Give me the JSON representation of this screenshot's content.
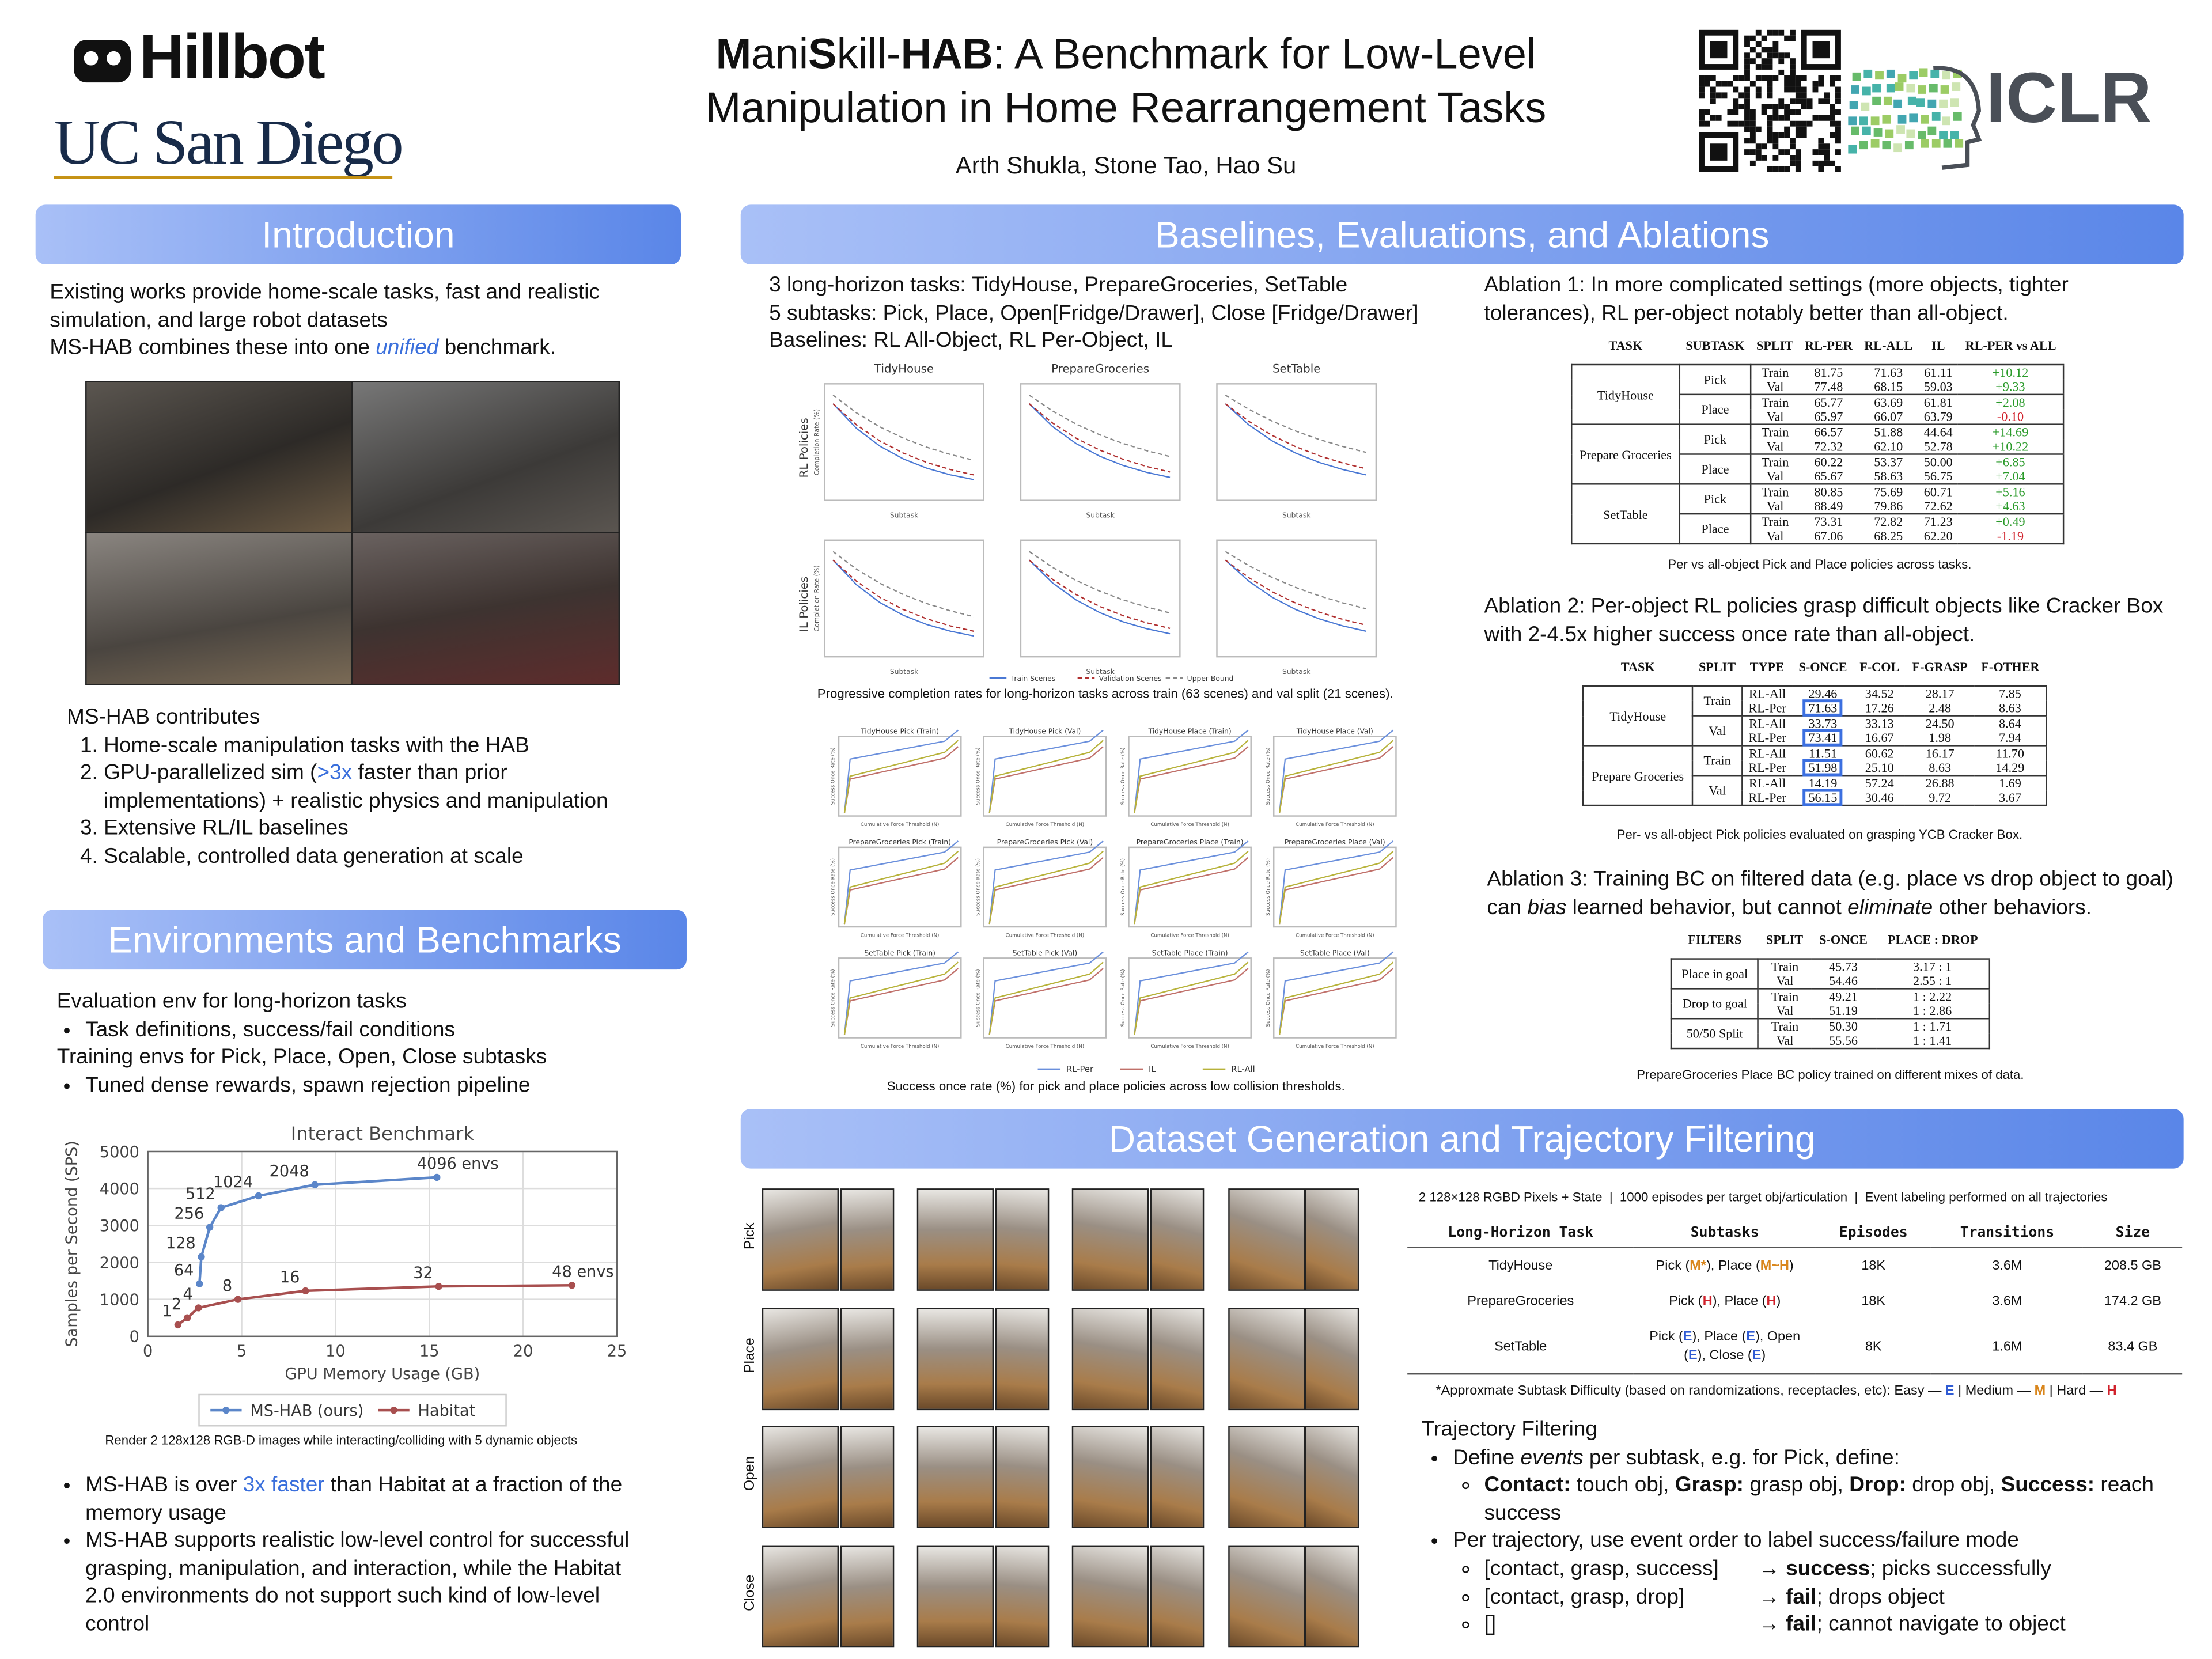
{
  "header": {
    "logos": [
      "Hillbot",
      "UC San Diego",
      "ICLR"
    ],
    "title": [
      "M",
      "ani",
      "S",
      "kill-",
      "HAB",
      ": A Benchmark for Low-Level",
      "Manipulation in Home Rearrangement Tasks"
    ],
    "authors": "Arth Shukla, Stone Tao, Hao Su"
  },
  "introduction": {
    "heading": "Introduction",
    "text": [
      "Existing works provide home-scale tasks, fast and realistic simulation, and large robot datasets",
      "MS-HAB combines these into one ",
      "unified",
      " benchmark."
    ],
    "contributes": "MS-HAB contributes",
    "items": [
      "Home-scale manipulation tasks with the HAB",
      [
        "GPU-parallelized sim (",
        ">3x",
        " faster than prior implementations) + realistic physics and manipulation"
      ],
      "Extensive RL/IL baselines",
      "Scalable, controlled data generation at scale"
    ]
  },
  "environments": {
    "heading": "Environments and Benchmarks",
    "lines": [
      "Evaluation env for long-horizon tasks",
      "Task definitions, success/fail conditions",
      "Training envs for Pick, Place, Open, Close subtasks",
      "Tuned dense rewards, spawn rejection pipeline"
    ],
    "caption": "Render 2 128x128 RGB-D images while interacting/colliding with 5 dynamic objects",
    "bullets": [
      [
        "MS-HAB is over ",
        "3x faster",
        " than Habitat at a fraction of the memory usage"
      ],
      "MS-HAB supports realistic low-level control for successful grasping, manipulation, and interaction, while the Habitat 2.0 environments do not support such kind of low-level control"
    ]
  },
  "chart_data": {
    "type": "line",
    "title": "Interact Benchmark",
    "x_label": "GPU Memory Usage (GB)",
    "y_label": "Samples per Second (SPS)",
    "xlim": [
      0,
      25
    ],
    "xticks": [
      0,
      5,
      10,
      15,
      20,
      25
    ],
    "ylim": [
      0,
      5000
    ],
    "yticks": [
      0,
      1000,
      2000,
      3000,
      4000,
      5000
    ],
    "grid": true,
    "legend": "bottom",
    "series": [
      {
        "name": "MS-HAB (ours)",
        "color": "#5b86c9",
        "x": [
          2.75,
          2.85,
          3.3,
          3.9,
          5.9,
          8.9,
          15.4
        ],
        "values": [
          1420,
          2150,
          2950,
          3480,
          3800,
          4100,
          4300
        ],
        "point_labels": [
          "64",
          "128",
          "256",
          "512",
          "1024",
          "2048",
          "4096 envs"
        ]
      },
      {
        "name": "Habitat",
        "color": "#a84f4f",
        "x": [
          1.6,
          2.1,
          2.7,
          4.8,
          8.4,
          15.5,
          22.6
        ],
        "values": [
          310,
          500,
          770,
          1000,
          1230,
          1350,
          1380
        ],
        "point_labels": [
          "1",
          "2",
          "4",
          "8",
          "16",
          "32",
          "48 envs"
        ]
      }
    ]
  },
  "baselines": {
    "heading": "Baselines, Evaluations, and Ablations",
    "lines": [
      "3 long-horizon tasks: TidyHouse, PrepareGroceries, SetTable",
      "5 subtasks: Pick, Place, Open[Fridge/Drawer], Close [Fridge/Drawer]",
      "Baselines: RL All-Object, RL Per-Object, IL"
    ],
    "completion_plots": {
      "columns": [
        "TidyHouse",
        "PrepareGroceries",
        "SetTable"
      ],
      "rows": [
        "RL Policies",
        "IL Policies"
      ],
      "ylabel": "Completion Rate (%)",
      "xlabel": "Subtask",
      "legend": [
        "Train Scenes",
        "Validation Scenes",
        "Upper Bound"
      ]
    },
    "completion_caption": "Progressive completion rates for long-horizon tasks across train (63 scenes) and val split (21 scenes).",
    "success_plots": {
      "titles": [
        "TidyHouse Pick (Train)",
        "TidyHouse Pick (Val)",
        "TidyHouse Place (Train)",
        "TidyHouse Place (Val)",
        "PrepareGroceries Pick (Train)",
        "PrepareGroceries Pick (Val)",
        "PrepareGroceries Place (Train)",
        "PrepareGroceries Place (Val)",
        "SetTable Pick (Train)",
        "SetTable Pick (Val)",
        "SetTable Place (Train)",
        "SetTable Place (Val)"
      ],
      "xlabel": "Cumulative Force Threshold (N)",
      "ylabel": "Success Once Rate (%)",
      "legend": [
        "RL-Per",
        "IL",
        "RL-All"
      ]
    },
    "success_caption": "Success once rate (%) for pick and place policies across low collision thresholds.",
    "ablation1": {
      "text": "Ablation 1: In more complicated settings (more objects, tighter tolerances), RL per-object notably better than all-object.",
      "header": [
        "TASK",
        "SUBTASK",
        "SPLIT",
        "RL-PER",
        "RL-ALL",
        "IL",
        "RL-PER vs ALL"
      ],
      "groups": [
        {
          "label": "TidyHouse",
          "children": [
            {
              "label": "Pick",
              "rows": [
                [
                  "Train",
                  "81.75",
                  "71.63",
                  "61.11",
                  "+10.12"
                ],
                [
                  "Val",
                  "77.48",
                  "68.15",
                  "59.03",
                  "+9.33"
                ]
              ]
            },
            {
              "label": "Place",
              "rows": [
                [
                  "Train",
                  "65.77",
                  "63.69",
                  "61.81",
                  "+2.08"
                ],
                [
                  "Val",
                  "65.97",
                  "66.07",
                  "63.79",
                  "-0.10"
                ]
              ]
            }
          ]
        },
        {
          "label": "Prepare Groceries",
          "children": [
            {
              "label": "Pick",
              "rows": [
                [
                  "Train",
                  "66.57",
                  "51.88",
                  "44.64",
                  "+14.69"
                ],
                [
                  "Val",
                  "72.32",
                  "62.10",
                  "52.78",
                  "+10.22"
                ]
              ]
            },
            {
              "label": "Place",
              "rows": [
                [
                  "Train",
                  "60.22",
                  "53.37",
                  "50.00",
                  "+6.85"
                ],
                [
                  "Val",
                  "65.67",
                  "58.63",
                  "56.75",
                  "+7.04"
                ]
              ]
            }
          ]
        },
        {
          "label": "SetTable",
          "children": [
            {
              "label": "Pick",
              "rows": [
                [
                  "Train",
                  "80.85",
                  "75.69",
                  "60.71",
                  "+5.16"
                ],
                [
                  "Val",
                  "88.49",
                  "79.86",
                  "72.62",
                  "+4.63"
                ]
              ]
            },
            {
              "label": "Place",
              "rows": [
                [
                  "Train",
                  "73.31",
                  "72.82",
                  "71.23",
                  "+0.49"
                ],
                [
                  "Val",
                  "67.06",
                  "68.25",
                  "62.20",
                  "-1.19"
                ]
              ]
            }
          ]
        }
      ],
      "caption": "Per vs all-object Pick and Place policies across tasks."
    },
    "ablation2": {
      "text": "Ablation 2: Per-object RL policies grasp difficult objects like Cracker Box with 2-4.5x higher success once rate than all-object.",
      "header": [
        "TASK",
        "SPLIT",
        "TYPE",
        "S-ONCE",
        "F-COL",
        "F-GRASP",
        "F-OTHER"
      ],
      "groups": [
        {
          "label": "TidyHouse",
          "children": [
            {
              "label": "Train",
              "rows": [
                [
                  "RL-All",
                  "29.46",
                  "34.52",
                  "28.17",
                  "7.85"
                ],
                [
                  "RL-Per",
                  "71.63",
                  "17.26",
                  "2.48",
                  "8.63"
                ]
              ]
            },
            {
              "label": "Val",
              "rows": [
                [
                  "RL-All",
                  "33.73",
                  "33.13",
                  "24.50",
                  "8.64"
                ],
                [
                  "RL-Per",
                  "73.41",
                  "16.67",
                  "1.98",
                  "7.94"
                ]
              ]
            }
          ]
        },
        {
          "label": "Prepare Groceries",
          "children": [
            {
              "label": "Train",
              "rows": [
                [
                  "RL-All",
                  "11.51",
                  "60.62",
                  "16.17",
                  "11.70"
                ],
                [
                  "RL-Per",
                  "51.98",
                  "25.10",
                  "8.63",
                  "14.29"
                ]
              ]
            },
            {
              "label": "Val",
              "rows": [
                [
                  "RL-All",
                  "14.19",
                  "57.24",
                  "26.88",
                  "1.69"
                ],
                [
                  "RL-Per",
                  "56.15",
                  "30.46",
                  "9.72",
                  "3.67"
                ]
              ]
            }
          ]
        }
      ],
      "caption": "Per- vs all-object Pick policies evaluated on grasping YCB Cracker Box."
    },
    "ablation3": {
      "text": [
        "Ablation 3: Training BC on filtered data (e.g. place vs drop object to goal) can ",
        "bias",
        " learned behavior, but cannot ",
        "eliminate",
        " other behaviors."
      ],
      "header": [
        "FILTERS",
        "SPLIT",
        "S-ONCE",
        "PLACE : DROP"
      ],
      "groups": [
        {
          "label": "Place in goal",
          "rows": [
            [
              "Train",
              "45.73",
              "3.17 : 1"
            ],
            [
              "Val",
              "54.46",
              "2.55 : 1"
            ]
          ]
        },
        {
          "label": "Drop to goal",
          "rows": [
            [
              "Train",
              "49.21",
              "1 : 2.22"
            ],
            [
              "Val",
              "51.19",
              "1 : 2.86"
            ]
          ]
        },
        {
          "label": "50/50 Split",
          "rows": [
            [
              "Train",
              "50.30",
              "1 : 1.71"
            ],
            [
              "Val",
              "55.56",
              "1 : 1.41"
            ]
          ]
        }
      ],
      "caption": "PrepareGroceries Place BC policy trained on different mixes of data."
    }
  },
  "dataset": {
    "heading": "Dataset Generation and Trajectory Filtering",
    "row_labels": [
      "Pick",
      "Place",
      "Open",
      "Close"
    ],
    "info": "2 128×128 RGBD Pixels + State  |  1000 episodes per target obj/articulation  |  Event labeling performed on all trajectories",
    "table": {
      "header": [
        "Long-Horizon Task",
        "Subtasks",
        "Episodes",
        "Transitions",
        "Size"
      ],
      "rows": [
        [
          "TidyHouse",
          [
            "Pick (",
            "M*",
            "), Place (",
            "M~H",
            ")"
          ],
          "18K",
          "3.6M",
          "208.5 GB"
        ],
        [
          "PrepareGroceries",
          [
            "Pick (",
            "H",
            "), Place (",
            "H",
            ")"
          ],
          "18K",
          "3.6M",
          "174.2 GB"
        ],
        [
          "SetTable",
          [
            "Pick (",
            "E",
            "), Place (",
            "E",
            "), Open (",
            "E",
            "), Close (",
            "E",
            ")"
          ],
          "8K",
          "1.6M",
          "83.4 GB"
        ]
      ]
    },
    "difficulty_colors": {
      "E": "#2f5bd3",
      "M": "#d9861c",
      "H": "#d0202a"
    },
    "footnote": [
      "*Approxmate Subtask Difficulty (based on randomizations, receptacles, etc): Easy — ",
      "E",
      " | Medium — ",
      "M",
      " | Hard — ",
      "H"
    ],
    "filtering": {
      "heading": "Trajectory Filtering",
      "l1": [
        "Define ",
        "events",
        " per subtask, e.g. for Pick, define:"
      ],
      "l2": [
        "Contact:",
        " touch obj, ",
        "Grasp:",
        " grasp obj, ",
        "Drop:",
        " drop obj, ",
        "Success:",
        " reach success"
      ],
      "l3": "Per trajectory, use event order to label success/failure mode",
      "cases": [
        [
          "[contact, grasp, success]",
          "→ ",
          "success",
          "; picks successfully"
        ],
        [
          "[contact, grasp, drop]",
          "→ ",
          "fail",
          "; drops object"
        ],
        [
          "[]",
          "→ ",
          "fail",
          "; cannot navigate to object"
        ]
      ]
    }
  }
}
